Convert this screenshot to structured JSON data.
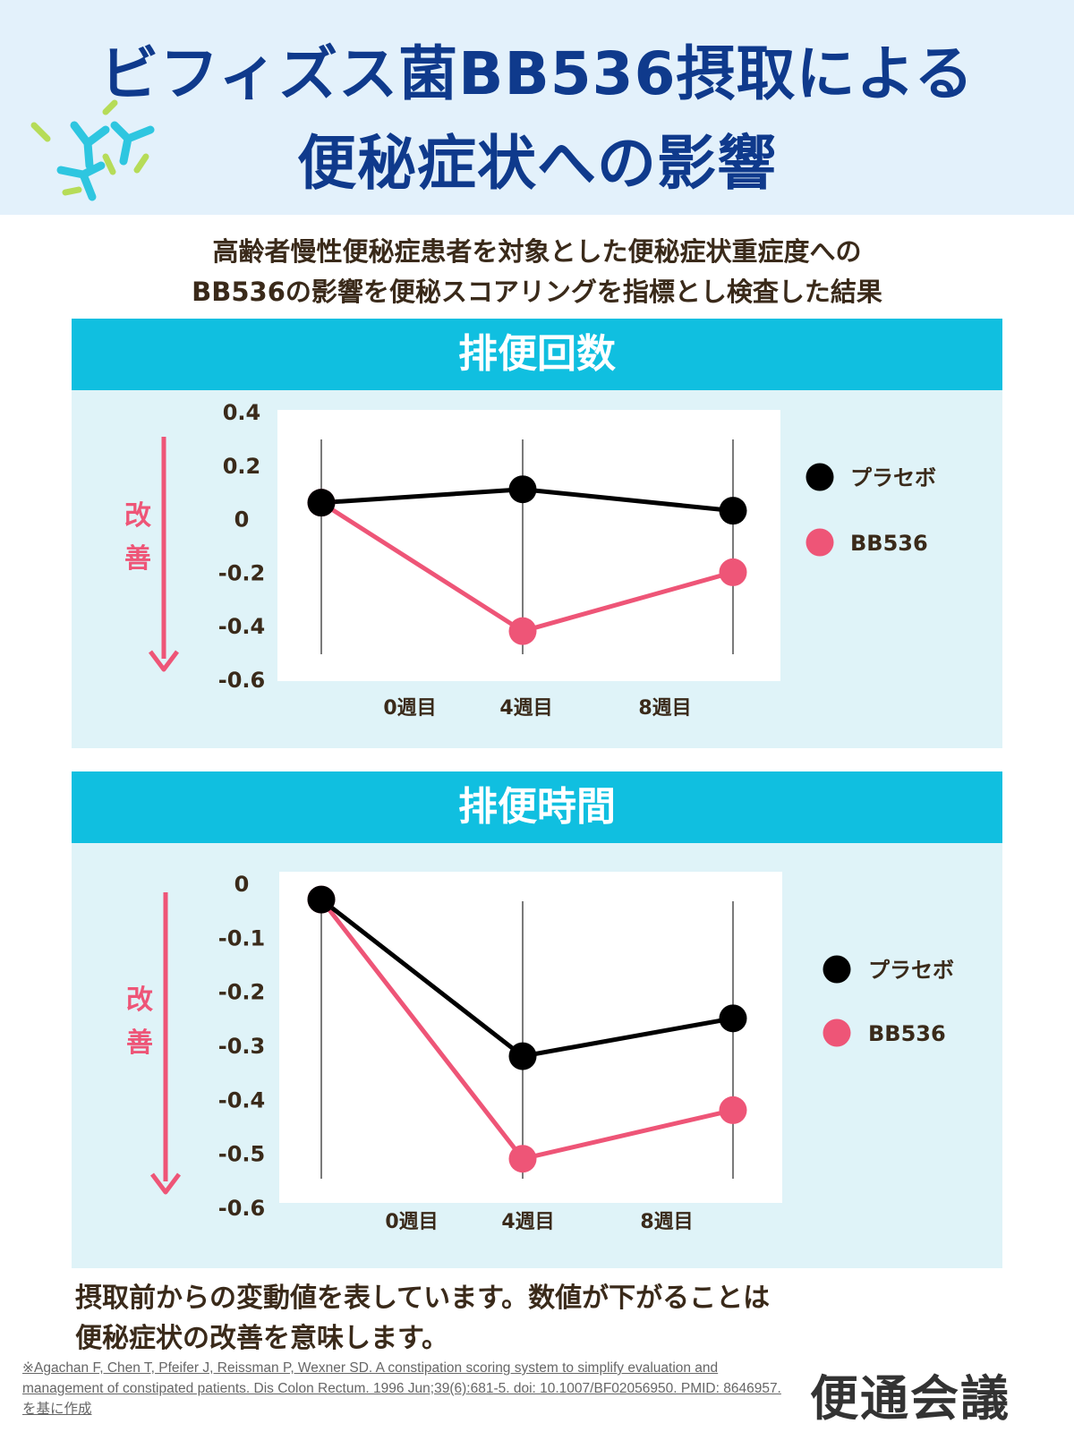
{
  "title": {
    "line1": "ビフィズス菌BB536摂取による",
    "line2": "便秘症状への影響",
    "bacteria_icon": "bacteria-icon"
  },
  "subtitle": {
    "line1": "高齢者慢性便秘症患者を対象とした便秘症状重症度への",
    "line2": "BB536の影響を便秘スコアリングを指標とし検査した結果"
  },
  "colors": {
    "title": "#0f3a8c",
    "panel_header": "#10bfe0",
    "panel_bg": "#dff3f8",
    "placebo": "#000000",
    "bb536": "#ee5577",
    "arrow": "#ee5577"
  },
  "improve_label": "改善",
  "chart_data": [
    {
      "type": "line",
      "title": "排便回数",
      "categories": [
        "0週目",
        "4週目",
        "8週目"
      ],
      "yticks": [
        "0.4",
        "0.2",
        "0",
        "-0.2",
        "-0.4",
        "-0.6"
      ],
      "ylim": [
        -0.6,
        0.4
      ],
      "legend_position": "right",
      "series": [
        {
          "name": "プラセボ",
          "color": "#000000",
          "values": [
            0.06,
            0.11,
            0.03
          ]
        },
        {
          "name": "BB536",
          "color": "#ee5577",
          "values": [
            0.06,
            -0.42,
            -0.2
          ]
        }
      ]
    },
    {
      "type": "line",
      "title": "排便時間",
      "categories": [
        "0週目",
        "4週目",
        "8週目"
      ],
      "yticks": [
        "0",
        "-0.1",
        "-0.2",
        "-0.3",
        "-0.4",
        "-0.5",
        "-0.6"
      ],
      "ylim": [
        -0.6,
        0
      ],
      "legend_position": "right",
      "series": [
        {
          "name": "プラセボ",
          "color": "#000000",
          "values": [
            -0.03,
            -0.32,
            -0.25
          ]
        },
        {
          "name": "BB536",
          "color": "#ee5577",
          "values": [
            -0.03,
            -0.51,
            -0.42
          ]
        }
      ]
    }
  ],
  "note": {
    "line1": "摂取前からの変動値を表しています。数値が下がることは",
    "line2": "便秘症状の改善を意味します。"
  },
  "citation": "※Agachan F, Chen T, Pfeifer J, Reissman P, Wexner SD. A constipation scoring system to simplify evaluation and management of constipated patients. Dis Colon Rectum. 1996 Jun;39(6):681-5. doi: 10.1007/BF02056950. PMID: 8646957.を基に作成",
  "logo": "便通会議"
}
